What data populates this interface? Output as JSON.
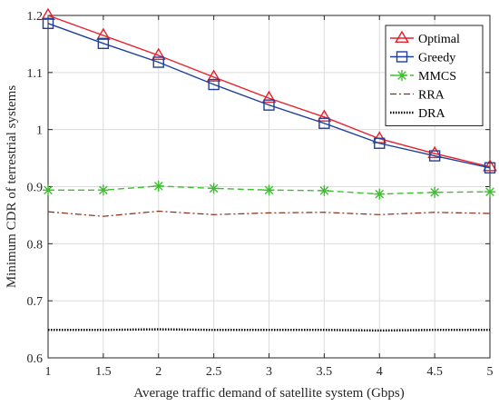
{
  "chart_data": {
    "type": "line",
    "title": "",
    "xlabel": "Average traffic demand of satellite system (Gbps)",
    "ylabel": "Minimum CDR of terrestrial systems",
    "xlim": [
      1,
      5
    ],
    "ylim": [
      0.6,
      1.2
    ],
    "xticks": [
      1,
      1.5,
      2,
      2.5,
      3,
      3.5,
      4,
      4.5,
      5
    ],
    "xtick_labels": [
      "1",
      "1.5",
      "2",
      "2.5",
      "3",
      "3.5",
      "4",
      "4.5",
      "5"
    ],
    "yticks": [
      0.6,
      0.7,
      0.8,
      0.9,
      1.0,
      1.1,
      1.2
    ],
    "ytick_labels": [
      "0.6",
      "0.7",
      "0.8",
      "0.9",
      "1",
      "1.1",
      "1.2"
    ],
    "grid": true,
    "legend_position": "top-right",
    "x": [
      1,
      1.5,
      2,
      2.5,
      3,
      3.5,
      4,
      4.5,
      5
    ],
    "series": [
      {
        "name": "Optimal",
        "color": "#e8202a",
        "marker": "triangle",
        "dash": "solid",
        "values": [
          1.2,
          1.165,
          1.13,
          1.092,
          1.055,
          1.022,
          0.984,
          0.958,
          0.935
        ]
      },
      {
        "name": "Greedy",
        "color": "#1f3f99",
        "marker": "square",
        "dash": "solid",
        "values": [
          1.186,
          1.151,
          1.118,
          1.079,
          1.043,
          1.011,
          0.976,
          0.954,
          0.933
        ]
      },
      {
        "name": "MMCS",
        "color": "#3dbf2f",
        "marker": "asterisk",
        "dash": "dashed",
        "values": [
          0.894,
          0.894,
          0.901,
          0.897,
          0.894,
          0.893,
          0.887,
          0.89,
          0.891
        ]
      },
      {
        "name": "RRA",
        "color": "#8b2a14",
        "marker": "none",
        "dash": "dashdot",
        "values": [
          0.856,
          0.848,
          0.857,
          0.851,
          0.854,
          0.855,
          0.851,
          0.855,
          0.853
        ]
      },
      {
        "name": "DRA",
        "color": "#000000",
        "marker": "none",
        "dash": "dotted",
        "values": [
          0.649,
          0.649,
          0.65,
          0.649,
          0.649,
          0.649,
          0.648,
          0.649,
          0.649
        ]
      }
    ]
  }
}
